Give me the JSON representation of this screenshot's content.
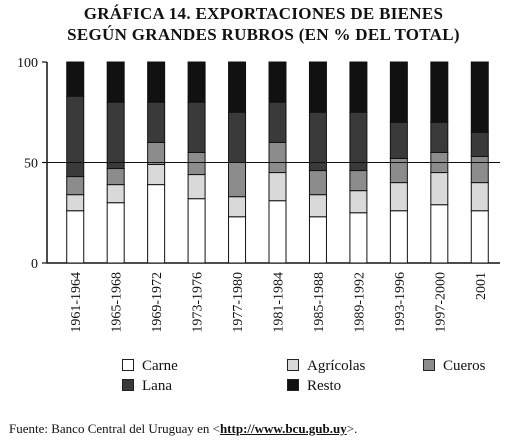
{
  "chart_data": {
    "type": "bar",
    "stacked": true,
    "title": "GRÁFICA 14. EXPORTACIONES DE BIENES",
    "subtitle": "SEGÚN GRANDES RUBROS (EN % DEL TOTAL)",
    "categories": [
      "1961-1964",
      "1965-1968",
      "1969-1972",
      "1973-1976",
      "1977-1980",
      "1981-1984",
      "1985-1988",
      "1989-1992",
      "1993-1996",
      "1997-2000",
      "2001"
    ],
    "ylim": [
      0,
      100
    ],
    "yticks": [
      "0",
      "50",
      "100"
    ],
    "reference_line": 50,
    "series": [
      {
        "name": "Carne",
        "color": "#ffffff",
        "values": [
          26,
          30,
          39,
          32,
          23,
          31,
          23,
          25,
          26,
          29,
          26
        ]
      },
      {
        "name": "Agrícolas",
        "color": "#d9d9d9",
        "values": [
          8,
          9,
          10,
          12,
          10,
          14,
          11,
          11,
          14,
          16,
          14
        ]
      },
      {
        "name": "Cueros",
        "color": "#8c8c8c",
        "values": [
          9,
          8,
          11,
          11,
          17,
          15,
          12,
          10,
          12,
          10,
          13
        ]
      },
      {
        "name": "Lana",
        "color": "#3a3a3a",
        "values": [
          40,
          33,
          20,
          25,
          25,
          20,
          29,
          29,
          18,
          15,
          12
        ]
      },
      {
        "name": "Resto",
        "color": "#111111",
        "values": [
          17,
          20,
          20,
          20,
          25,
          20,
          25,
          25,
          30,
          30,
          35
        ]
      }
    ],
    "grid": false
  },
  "legend": {
    "carne": "Carne",
    "agricolas": "Agrícolas",
    "cueros": "Cueros",
    "lana": "Lana",
    "resto": "Resto"
  },
  "source": {
    "prefix": "Fuente: Banco Central del Uruguay en <",
    "link": "http://www.bcu.gub.uy",
    "suffix": ">."
  }
}
